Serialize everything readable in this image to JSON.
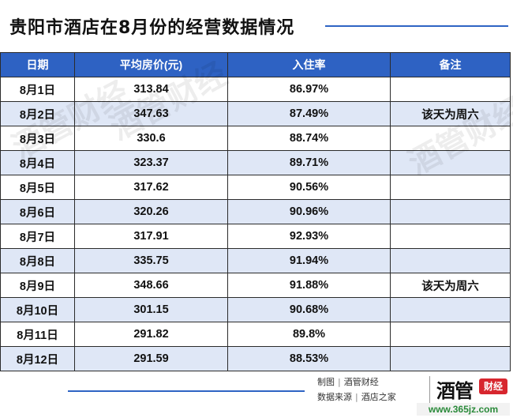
{
  "title": "贵阳市酒店在8月份的经营数据情况",
  "table": {
    "headers": [
      "日期",
      "平均房价(元)",
      "入住率",
      "备注"
    ],
    "rows": [
      [
        "8月1日",
        "313.84",
        "86.97%",
        ""
      ],
      [
        "8月2日",
        "347.63",
        "87.49%",
        "该天为周六"
      ],
      [
        "8月3日",
        "330.6",
        "88.74%",
        ""
      ],
      [
        "8月4日",
        "323.37",
        "89.71%",
        ""
      ],
      [
        "8月5日",
        "317.62",
        "90.56%",
        ""
      ],
      [
        "8月6日",
        "320.26",
        "90.96%",
        ""
      ],
      [
        "8月7日",
        "317.91",
        "92.93%",
        ""
      ],
      [
        "8月8日",
        "335.75",
        "91.94%",
        ""
      ],
      [
        "8月9日",
        "348.66",
        "91.88%",
        "该天为周六"
      ],
      [
        "8月10日",
        "301.15",
        "90.68%",
        ""
      ],
      [
        "8月11日",
        "291.82",
        "89.8%",
        ""
      ],
      [
        "8月12日",
        "291.59",
        "88.53%",
        ""
      ]
    ]
  },
  "watermark": "酒管财经",
  "credits": {
    "line1_label": "制图",
    "line1_value": "酒管财经",
    "line2_label": "数据来源",
    "line2_value": "酒店之家"
  },
  "logo": {
    "main": "酒管",
    "badge": "财经"
  },
  "site_watermark": "www.365jz.com",
  "colors": {
    "header_bg": "#2e62c3",
    "stripe": "#dfe7f6",
    "accent_line": "#2f64c4",
    "logo_badge": "#d7262e"
  }
}
